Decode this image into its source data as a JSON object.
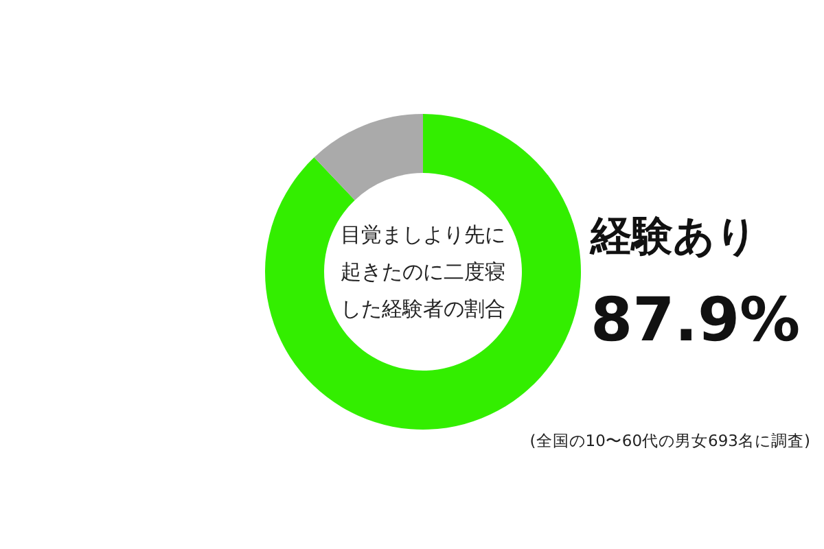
{
  "chart_data": {
    "type": "donut",
    "title": "目覚ましより先に起きたのに二度寝した経験者の割合",
    "categories": [
      "経験あり",
      null
    ],
    "values": [
      87.9,
      12.1
    ],
    "colors": [
      "#33ee00",
      "#aaaaaa"
    ],
    "value_labels": [
      "87.9%",
      null
    ],
    "annotations": [
      "(全国の10〜60代の男女693名に調査)"
    ]
  }
}
